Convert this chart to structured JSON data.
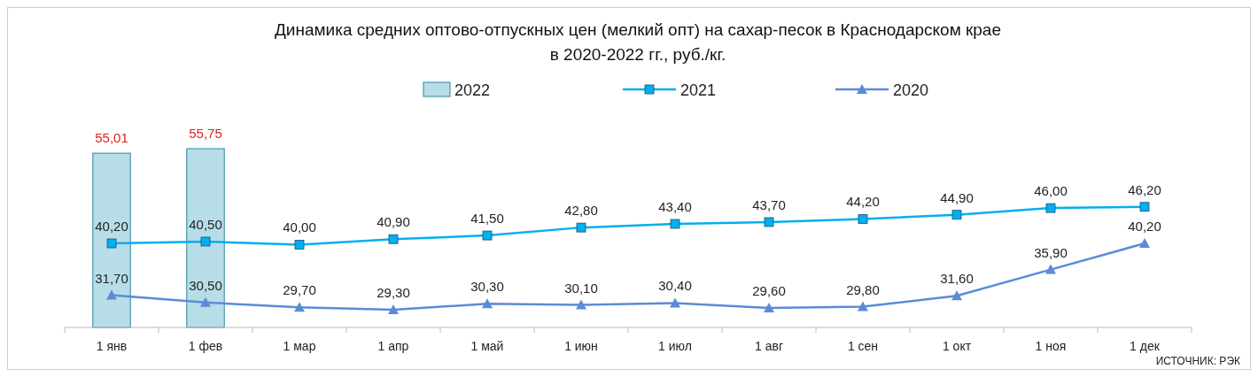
{
  "chart_data": {
    "type": "bar",
    "title": "Динамика средних оптово-отпускных цен (мелкий опт) на сахар-песок в Краснодарском крае\nв 2020-2022 гг., руб./кг.",
    "categories": [
      "1 янв",
      "1 фев",
      "1 мар",
      "1 апр",
      "1 май",
      "1 июн",
      "1 июл",
      "1 авг",
      "1 сен",
      "1 окт",
      "1 ноя",
      "1 дек"
    ],
    "series": [
      {
        "name": "2022",
        "color": "#b7dde8",
        "values": [
          55.01,
          55.75,
          null,
          null,
          null,
          null,
          null,
          null,
          null,
          null,
          null,
          null
        ],
        "value_labels": [
          "55,01",
          "55,75",
          null,
          null,
          null,
          null,
          null,
          null,
          null,
          null,
          null,
          null
        ]
      },
      {
        "name": "2021",
        "type": "line",
        "color": "#00b0f0",
        "marker": "square",
        "values": [
          40.2,
          40.5,
          40.0,
          40.9,
          41.5,
          42.8,
          43.4,
          43.7,
          44.2,
          44.9,
          46.0,
          46.2
        ],
        "value_labels": [
          "40,20",
          "40,50",
          "40,00",
          "40,90",
          "41,50",
          "42,80",
          "43,40",
          "43,70",
          "44,20",
          "44,90",
          "46,00",
          "46,20"
        ]
      },
      {
        "name": "2020",
        "type": "line",
        "color": "#5b8bd8",
        "marker": "triangle",
        "values": [
          31.7,
          30.5,
          29.7,
          29.3,
          30.3,
          30.1,
          30.4,
          29.6,
          29.8,
          31.6,
          35.9,
          40.2
        ],
        "value_labels": [
          "31,70",
          "30,50",
          "29,70",
          "29,30",
          "30,30",
          "30,10",
          "30,40",
          "29,60",
          "29,80",
          "31,60",
          "35,90",
          "40,20"
        ]
      }
    ],
    "ylim": [
      26.4,
      55.75
    ],
    "legend": "top",
    "tick_labels": "x",
    "annotations": [
      "ИСТОЧНИК: РЭК"
    ]
  }
}
